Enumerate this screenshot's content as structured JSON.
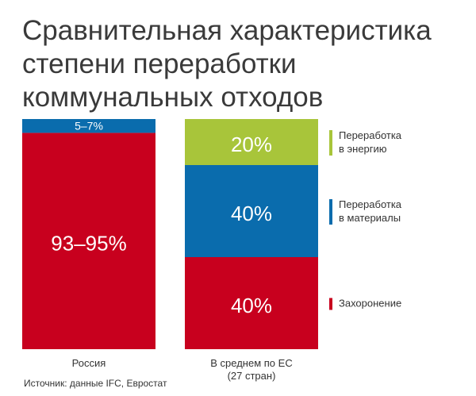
{
  "title_lines": [
    "Сравнительная характеристика",
    "степени переработки",
    "коммунальных отходов"
  ],
  "source": "Источник: данные IFC, Евростат",
  "colors": {
    "landfill": "#c8001e",
    "materials": "#0a6cad",
    "energy": "#a8c53a"
  },
  "chart_data": {
    "type": "bar",
    "stacked": true,
    "normalized_to": 100,
    "categories": [
      "Россия",
      "В среднем по ЕС\n(27 стран)"
    ],
    "series": [
      {
        "name": "Захоронение",
        "color": "#c8001e",
        "values": [
          94,
          40
        ],
        "labels": [
          "93–95%",
          "40%"
        ]
      },
      {
        "name": "Переработка\nв материалы",
        "color": "#0a6cad",
        "values": [
          6,
          40
        ],
        "labels": [
          "5–7%",
          "40%"
        ]
      },
      {
        "name": "Переработка\nв энергию",
        "color": "#a8c53a",
        "values": [
          0,
          20
        ],
        "labels": [
          "",
          "20%"
        ]
      }
    ],
    "legend_placement": "right",
    "grid": false
  }
}
